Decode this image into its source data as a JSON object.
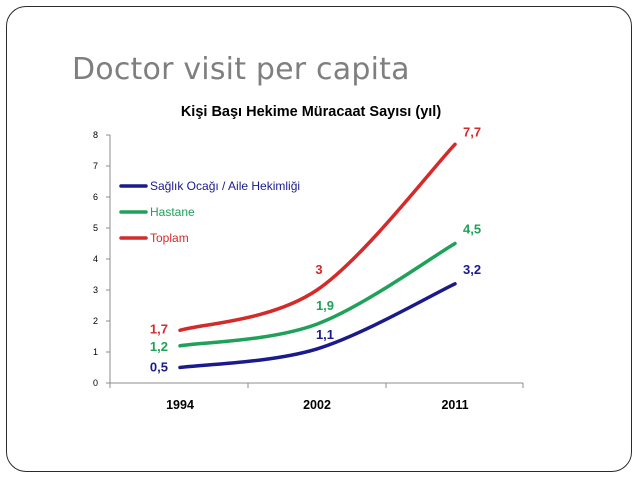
{
  "slide": {
    "title": "Doctor visit per capita"
  },
  "chart_data": {
    "type": "line",
    "title": "Kişi Başı Hekime Müracaat Sayısı (yıl)",
    "xlabel": "",
    "ylabel": "",
    "categories": [
      "1994",
      "2002",
      "2011"
    ],
    "ylim": [
      0,
      8
    ],
    "yticks": [
      "0",
      "1",
      "2",
      "3",
      "4",
      "5",
      "6",
      "7",
      "8"
    ],
    "grid": false,
    "legend_position": "left",
    "series": [
      {
        "name": "Sağlık Ocağı / Aile Hekimliği",
        "color": "#1a1a8c",
        "values": [
          0.5,
          1.1,
          3.2
        ],
        "labels": [
          "0,5",
          "1,1",
          "3,2"
        ]
      },
      {
        "name": "Hastane",
        "color": "#1fa15a",
        "values": [
          1.2,
          1.9,
          4.5
        ],
        "labels": [
          "1,2",
          "1,9",
          "4,5"
        ]
      },
      {
        "name": "Toplam",
        "color": "#d42a2a",
        "values": [
          1.7,
          3,
          7.7
        ],
        "labels": [
          "1,7",
          "3",
          "7,7"
        ]
      }
    ]
  }
}
